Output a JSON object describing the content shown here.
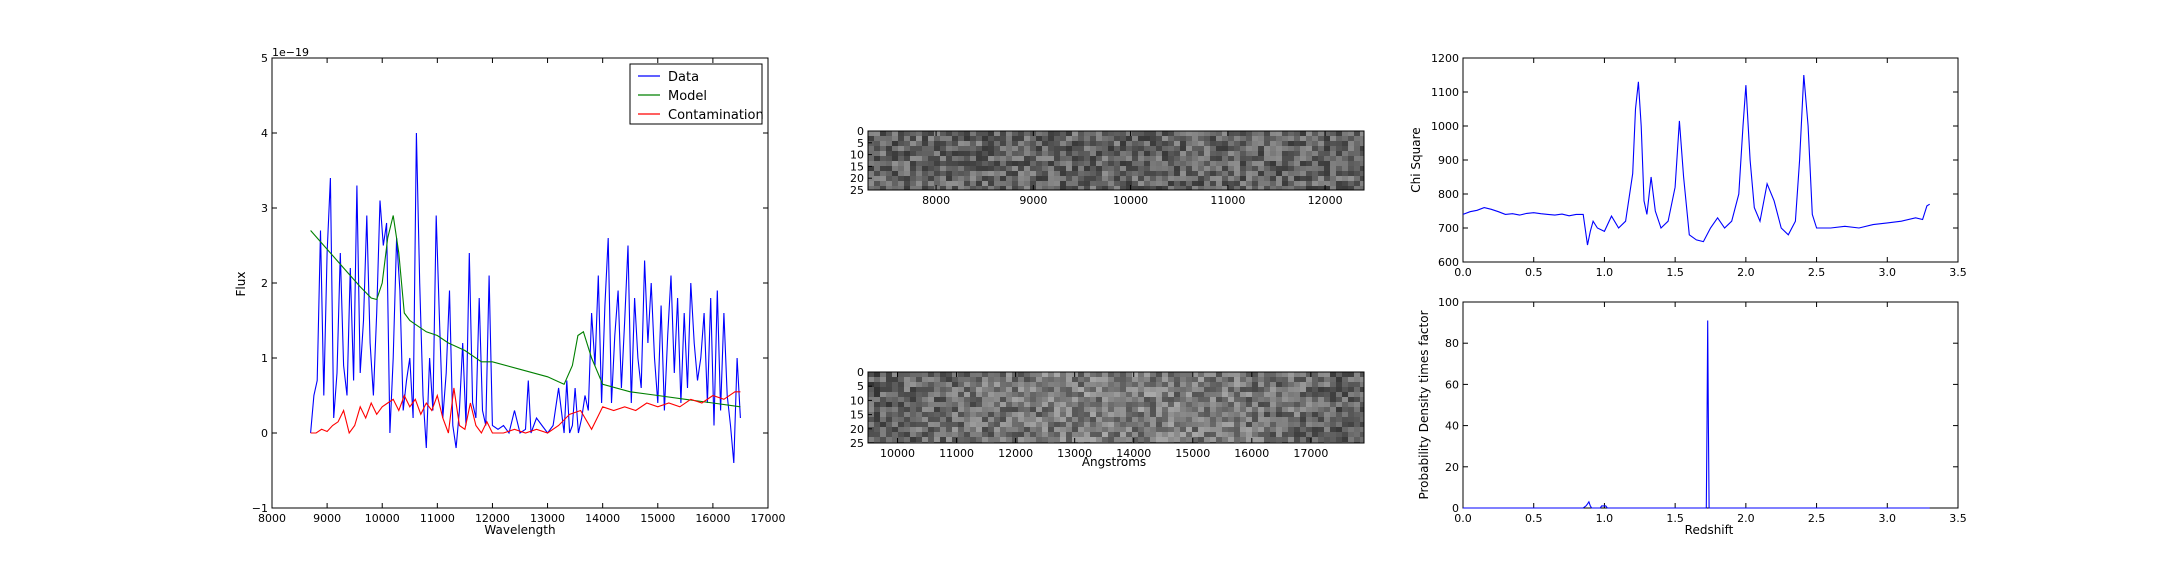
{
  "chart_data": [
    {
      "type": "line",
      "xlabel": "Wavelength",
      "ylabel": "Flux",
      "offset_text": "1e−19",
      "xlim": [
        8000,
        17000
      ],
      "ylim": [
        -1,
        5
      ],
      "xticks": [
        "8000",
        "9000",
        "10000",
        "11000",
        "12000",
        "13000",
        "14000",
        "15000",
        "16000",
        "17000"
      ],
      "yticks": [
        "−1",
        "0",
        "1",
        "2",
        "3",
        "4",
        "5"
      ],
      "legend": "top-right",
      "series": [
        {
          "name": "Data",
          "color": "#0000ff",
          "x": [
            8700,
            8760,
            8820,
            8880,
            8940,
            9000,
            9060,
            9120,
            9180,
            9240,
            9300,
            9360,
            9420,
            9480,
            9540,
            9600,
            9660,
            9720,
            9780,
            9840,
            9900,
            9960,
            10020,
            10080,
            10140,
            10200,
            10260,
            10320,
            10380,
            10440,
            10500,
            10560,
            10620,
            10680,
            10740,
            10800,
            10860,
            10920,
            10980,
            11040,
            11100,
            11160,
            11220,
            11280,
            11340,
            11400,
            11460,
            11520,
            11580,
            11640,
            11700,
            11760,
            11820,
            11880,
            11940,
            12000,
            12100,
            12200,
            12300,
            12400,
            12500,
            12600,
            12650,
            12700,
            12800,
            12900,
            13000,
            13100,
            13200,
            13300,
            13350,
            13400,
            13450,
            13500,
            13560,
            13620,
            13680,
            13740,
            13800,
            13860,
            13920,
            13980,
            14040,
            14100,
            14160,
            14220,
            14280,
            14340,
            14400,
            14460,
            14520,
            14580,
            14640,
            14700,
            14760,
            14820,
            14880,
            14940,
            15000,
            15060,
            15120,
            15180,
            15240,
            15300,
            15360,
            15420,
            15480,
            15540,
            15600,
            15660,
            15720,
            15780,
            15840,
            15900,
            15960,
            16020,
            16080,
            16140,
            16200,
            16260,
            16320,
            16380,
            16440,
            16500
          ],
          "y": [
            0.0,
            0.5,
            0.7,
            2.7,
            0.5,
            2.4,
            3.4,
            0.2,
            0.8,
            2.4,
            0.9,
            0.5,
            2.2,
            0.7,
            3.3,
            0.8,
            1.5,
            2.9,
            1.2,
            0.5,
            1.6,
            3.1,
            2.5,
            2.8,
            0.0,
            1.0,
            2.6,
            1.9,
            0.3,
            0.7,
            1.0,
            0.2,
            4.0,
            2.0,
            0.5,
            -0.2,
            1.0,
            0.3,
            2.9,
            1.5,
            0.2,
            0.8,
            1.9,
            0.1,
            -0.2,
            0.3,
            1.2,
            0.1,
            2.4,
            0.4,
            0.2,
            1.8,
            0.3,
            0.1,
            2.1,
            0.1,
            0.05,
            0.1,
            0.0,
            0.3,
            0.0,
            0.05,
            0.7,
            0.0,
            0.2,
            0.1,
            0.0,
            0.1,
            0.6,
            0.0,
            0.7,
            0.0,
            0.1,
            0.6,
            0.0,
            0.2,
            0.5,
            0.3,
            1.6,
            0.9,
            2.1,
            0.4,
            1.7,
            2.6,
            0.4,
            1.3,
            1.9,
            0.6,
            1.5,
            2.5,
            0.4,
            1.8,
            1.0,
            0.6,
            2.3,
            1.2,
            2.0,
            1.0,
            0.4,
            1.7,
            0.3,
            1.3,
            2.1,
            0.8,
            1.8,
            0.4,
            1.6,
            0.6,
            2.0,
            1.2,
            0.7,
            1.0,
            1.6,
            0.4,
            1.8,
            0.1,
            1.9,
            0.3,
            1.6,
            0.5,
            0.1,
            -0.4,
            1.0,
            0.2
          ]
        },
        {
          "name": "Model",
          "color": "#008000",
          "x": [
            8700,
            9000,
            9300,
            9600,
            9800,
            9900,
            10000,
            10100,
            10200,
            10300,
            10400,
            10500,
            10600,
            10800,
            11000,
            11200,
            11500,
            11800,
            12000,
            12500,
            13000,
            13300,
            13450,
            13550,
            13650,
            13800,
            14000,
            14500,
            15000,
            15500,
            16000,
            16500
          ],
          "y": [
            2.7,
            2.45,
            2.2,
            1.95,
            1.8,
            1.78,
            2.0,
            2.6,
            2.9,
            2.4,
            1.6,
            1.5,
            1.45,
            1.35,
            1.3,
            1.2,
            1.1,
            0.95,
            0.95,
            0.85,
            0.75,
            0.65,
            0.9,
            1.3,
            1.35,
            1.0,
            0.65,
            0.55,
            0.5,
            0.45,
            0.4,
            0.35
          ]
        },
        {
          "name": "Contamination",
          "color": "#ff0000",
          "x": [
            8700,
            8800,
            8900,
            9000,
            9100,
            9200,
            9300,
            9400,
            9500,
            9600,
            9700,
            9800,
            9900,
            10000,
            10100,
            10200,
            10300,
            10400,
            10500,
            10600,
            10700,
            10800,
            10900,
            11000,
            11100,
            11200,
            11300,
            11400,
            11500,
            11600,
            11700,
            11800,
            11900,
            12000,
            12200,
            12400,
            12600,
            12800,
            13000,
            13200,
            13400,
            13600,
            13800,
            14000,
            14200,
            14400,
            14600,
            14800,
            15000,
            15200,
            15400,
            15600,
            15800,
            16000,
            16200,
            16400,
            16500
          ],
          "y": [
            0.0,
            0.0,
            0.05,
            0.02,
            0.1,
            0.15,
            0.3,
            0.0,
            0.1,
            0.35,
            0.2,
            0.4,
            0.25,
            0.35,
            0.4,
            0.45,
            0.3,
            0.5,
            0.35,
            0.45,
            0.25,
            0.4,
            0.3,
            0.5,
            0.2,
            0.0,
            0.6,
            0.1,
            0.05,
            0.4,
            0.1,
            0.0,
            0.15,
            0.0,
            0.0,
            0.05,
            0.0,
            0.05,
            0.0,
            0.1,
            0.25,
            0.3,
            0.05,
            0.35,
            0.3,
            0.35,
            0.3,
            0.4,
            0.35,
            0.4,
            0.35,
            0.45,
            0.4,
            0.5,
            0.45,
            0.55,
            0.55
          ]
        }
      ]
    },
    {
      "type": "heatmap",
      "panel": "2D spectrum (top)",
      "xlim": [
        7300,
        12400
      ],
      "ylim": [
        0,
        25
      ],
      "xticks": [
        "8000",
        "9000",
        "10000",
        "11000",
        "12000"
      ],
      "yticks": [
        "0",
        "5",
        "10",
        "15",
        "20",
        "25"
      ],
      "colormap": "gray"
    },
    {
      "type": "heatmap",
      "panel": "2D spectrum (bottom)",
      "xlabel": "Angstroms",
      "xlim": [
        9500,
        17900
      ],
      "ylim": [
        0,
        25
      ],
      "xticks": [
        "10000",
        "11000",
        "12000",
        "13000",
        "14000",
        "15000",
        "16000",
        "17000"
      ],
      "yticks": [
        "0",
        "5",
        "10",
        "15",
        "20",
        "25"
      ],
      "colormap": "gray"
    },
    {
      "type": "line",
      "ylabel": "Chi Square",
      "xlim": [
        0.0,
        3.5
      ],
      "ylim": [
        600,
        1200
      ],
      "xticks": [
        "0.0",
        "0.5",
        "1.0",
        "1.5",
        "2.0",
        "2.5",
        "3.0",
        "3.5"
      ],
      "yticks": [
        "600",
        "700",
        "800",
        "900",
        "1000",
        "1100",
        "1200"
      ],
      "series": [
        {
          "color": "#0000ff",
          "x": [
            0.0,
            0.05,
            0.1,
            0.15,
            0.2,
            0.25,
            0.3,
            0.35,
            0.4,
            0.45,
            0.5,
            0.55,
            0.6,
            0.65,
            0.7,
            0.75,
            0.8,
            0.85,
            0.88,
            0.9,
            0.92,
            0.95,
            1.0,
            1.05,
            1.1,
            1.15,
            1.2,
            1.22,
            1.24,
            1.26,
            1.28,
            1.3,
            1.33,
            1.36,
            1.4,
            1.45,
            1.5,
            1.53,
            1.56,
            1.6,
            1.65,
            1.7,
            1.75,
            1.8,
            1.85,
            1.9,
            1.95,
            1.98,
            2.0,
            2.03,
            2.06,
            2.1,
            2.15,
            2.2,
            2.25,
            2.3,
            2.35,
            2.38,
            2.41,
            2.44,
            2.47,
            2.5,
            2.6,
            2.7,
            2.8,
            2.9,
            3.0,
            3.1,
            3.2,
            3.25,
            3.28,
            3.3
          ],
          "y": [
            740,
            748,
            752,
            760,
            755,
            748,
            740,
            742,
            738,
            743,
            745,
            742,
            740,
            738,
            741,
            736,
            740,
            740,
            650,
            690,
            720,
            700,
            690,
            735,
            700,
            720,
            860,
            1050,
            1130,
            1000,
            780,
            740,
            850,
            750,
            700,
            720,
            820,
            1015,
            850,
            680,
            665,
            660,
            700,
            730,
            700,
            720,
            800,
            1000,
            1120,
            900,
            760,
            720,
            830,
            780,
            700,
            680,
            720,
            900,
            1150,
            1000,
            740,
            700,
            700,
            705,
            700,
            710,
            715,
            720,
            730,
            725,
            765,
            770
          ]
        }
      ]
    },
    {
      "type": "line",
      "xlabel": "Redshift",
      "ylabel": "Probability Density times factor",
      "xlim": [
        0.0,
        3.5
      ],
      "ylim": [
        0,
        100
      ],
      "xticks": [
        "0.0",
        "0.5",
        "1.0",
        "1.5",
        "2.0",
        "2.5",
        "3.0",
        "3.5"
      ],
      "yticks": [
        "0",
        "20",
        "40",
        "60",
        "80",
        "100"
      ],
      "series": [
        {
          "color": "#0000ff",
          "x": [
            0.0,
            0.85,
            0.87,
            0.88,
            0.89,
            0.9,
            0.91,
            0.93,
            0.95,
            0.97,
            0.98,
            0.99,
            1.0,
            1.01,
            1.02,
            1.04,
            1.7,
            1.72,
            1.725,
            1.73,
            1.735,
            1.74,
            1.76,
            3.3
          ],
          "y": [
            0,
            0,
            1,
            2,
            3,
            1,
            0,
            0,
            0,
            0,
            1,
            1,
            1,
            1,
            0,
            0,
            0,
            0,
            40,
            91,
            40,
            0,
            0,
            0
          ]
        }
      ]
    }
  ]
}
